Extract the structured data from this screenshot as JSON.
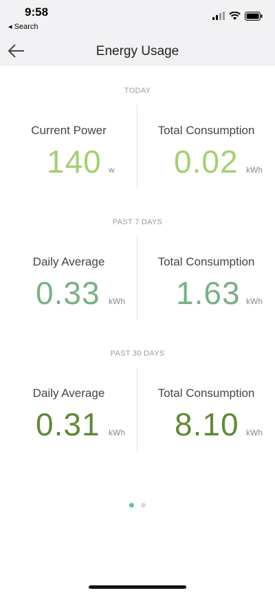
{
  "status_bar": {
    "time": "9:58",
    "back_app_label": "◂ Search"
  },
  "nav": {
    "title": "Energy Usage",
    "back_icon": "arrow-left-icon"
  },
  "colors": {
    "today_green": "#a3d06f",
    "week_green": "#78b084",
    "month_green": "#5e8a35",
    "active_dot": "#5cc3ad",
    "inactive_dot": "#d9d9d9"
  },
  "sections": [
    {
      "label": "TODAY",
      "left": {
        "label": "Current Power",
        "value": "140",
        "unit": "w"
      },
      "right": {
        "label": "Total Consumption",
        "value": "0.02",
        "unit": "kWh"
      }
    },
    {
      "label": "PAST 7 DAYS",
      "left": {
        "label": "Daily Average",
        "value": "0.33",
        "unit": "kWh"
      },
      "right": {
        "label": "Total Consumption",
        "value": "1.63",
        "unit": "kWh"
      }
    },
    {
      "label": "PAST 30 DAYS",
      "left": {
        "label": "Daily Average",
        "value": "0.31",
        "unit": "kWh"
      },
      "right": {
        "label": "Total Consumption",
        "value": "8.10",
        "unit": "kWh"
      }
    }
  ],
  "pager": {
    "page_count": 2,
    "active_index": 0
  }
}
